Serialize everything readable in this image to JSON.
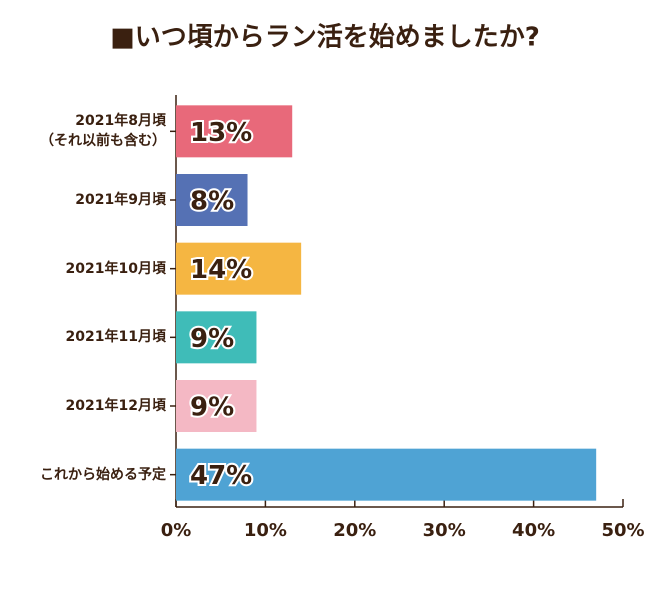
{
  "chart_data": {
    "type": "bar",
    "orientation": "horizontal",
    "title": "■いつ頃からラン活を始めましたか?",
    "categories": [
      "2021年8月頃\n（それ以前も含む）",
      "2021年9月頃",
      "2021年10月頃",
      "2021年11月頃",
      "2021年12月頃",
      "これから始める予定"
    ],
    "values": [
      13,
      8,
      14,
      9,
      9,
      47
    ],
    "value_labels": [
      "13%",
      "8%",
      "14%",
      "9%",
      "9%",
      "47%"
    ],
    "colors": [
      "#e8697a",
      "#5571b4",
      "#f5b642",
      "#3fbcb8",
      "#f4b8c4",
      "#4fa3d4"
    ],
    "xlim": [
      0,
      50
    ],
    "xticks": [
      {
        "value": 0,
        "label": "0%"
      },
      {
        "value": 10,
        "label": "10%"
      },
      {
        "value": 20,
        "label": "20%"
      },
      {
        "value": 30,
        "label": "30%"
      },
      {
        "value": 40,
        "label": "40%"
      },
      {
        "value": 50,
        "label": "50%"
      }
    ]
  }
}
